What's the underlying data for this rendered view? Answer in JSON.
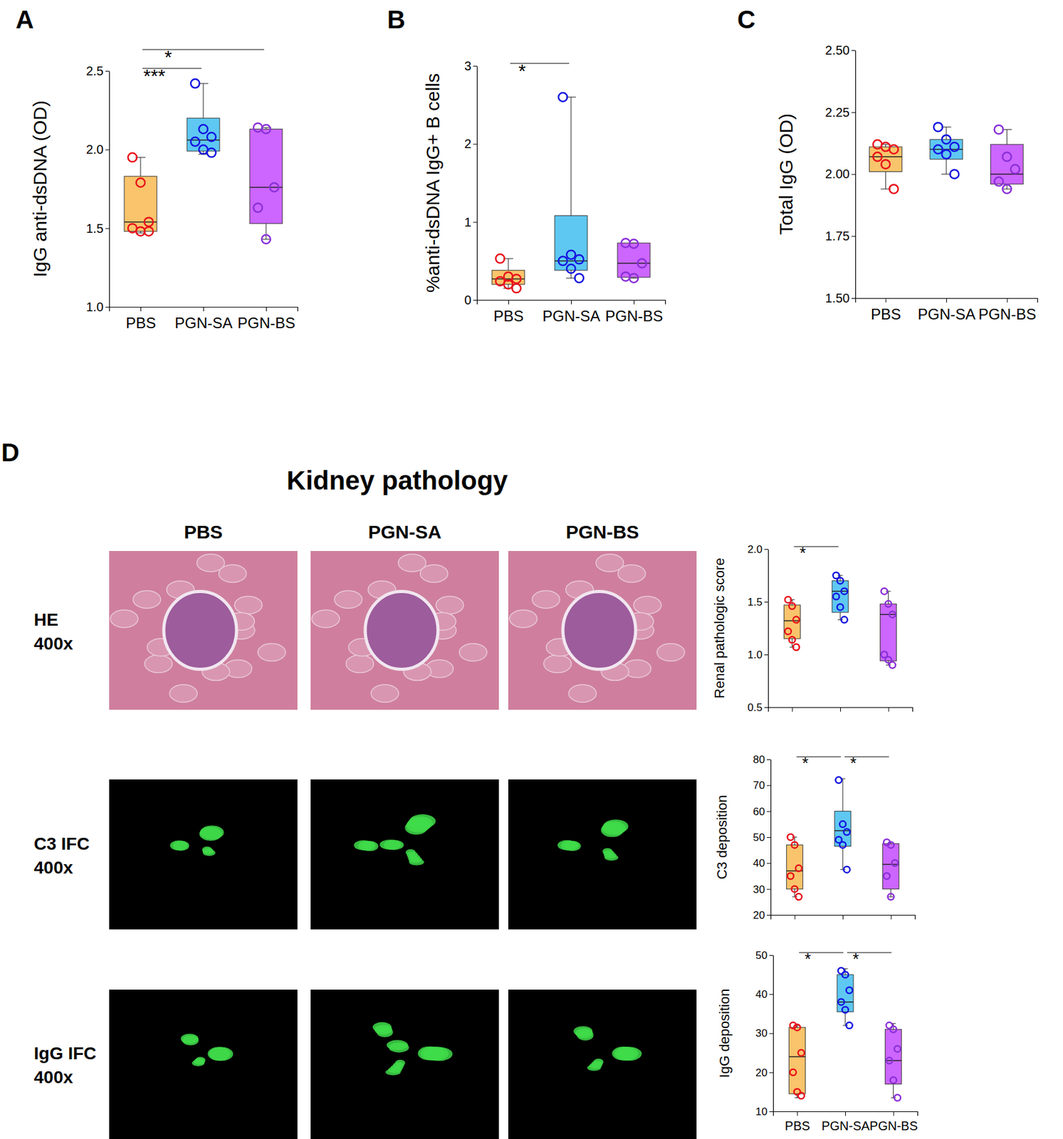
{
  "figure": {
    "panel": "D",
    "title": "Kidney pathology",
    "columns": [
      "PBS",
      "PGN-SA",
      "PGN-BS"
    ],
    "rows": [
      {
        "stain": "HE",
        "magnification": "400x"
      },
      {
        "stain": "C3 IFC",
        "magnification": "400x"
      },
      {
        "stain": "IgG IFC",
        "magnification": "400x"
      }
    ]
  },
  "chart_data": [
    {
      "type": "box",
      "panel": "A",
      "ylabel": "IgG anti-dsDNA (OD)",
      "categories": [
        "PBS",
        "PGN-SA",
        "PGN-BS"
      ],
      "ylim": [
        1.0,
        2.5
      ],
      "yticks": [
        {
          "value": 1,
          "label": "1.0"
        },
        1.5,
        {
          "value": 2,
          "label": "2.0"
        },
        2.5
      ],
      "boxes": [
        {
          "color": "#f9c46b",
          "points": {
            "color": "#e8121b",
            "values": [
              1.95,
              1.79,
              1.54,
              1.5,
              1.48,
              1.48
            ]
          },
          "whisker_low": 1.47,
          "q1": 1.48,
          "median": 1.54,
          "q3": 1.83,
          "whisker_high": 1.95
        },
        {
          "color": "#5ec8f2",
          "points": {
            "color": "#1515e0",
            "values": [
              2.42,
              2.13,
              2.08,
              2.05,
              2.0,
              1.98
            ]
          },
          "whisker_low": 1.97,
          "q1": 1.99,
          "median": 2.06,
          "q3": 2.2,
          "whisker_high": 2.42
        },
        {
          "color": "#cc66ff",
          "points": {
            "color": "#8b30d8",
            "values": [
              2.14,
              2.13,
              1.76,
              1.63,
              1.43
            ]
          },
          "whisker_low": 1.43,
          "q1": 1.53,
          "median": 1.76,
          "q3": 2.13,
          "whisker_high": 2.14
        }
      ],
      "significance": [
        {
          "between": [
            0,
            1
          ],
          "label": "***"
        },
        {
          "between": [
            0,
            2
          ],
          "label": "*"
        }
      ]
    },
    {
      "type": "box",
      "panel": "B",
      "ylabel": "%anti-dsDNA IgG+ B cells",
      "categories": [
        "PBS",
        "PGN-SA",
        "PGN-BS"
      ],
      "ylim": [
        0,
        3
      ],
      "yticks": [
        0,
        1,
        2,
        3
      ],
      "boxes": [
        {
          "color": "#f9c46b",
          "points": {
            "color": "#e8121b",
            "values": [
              0.53,
              0.3,
              0.27,
              0.24,
              0.2,
              0.15
            ]
          },
          "whisker_low": 0.15,
          "q1": 0.2,
          "median": 0.27,
          "q3": 0.38,
          "whisker_high": 0.53
        },
        {
          "color": "#5ec8f2",
          "points": {
            "color": "#1515e0",
            "values": [
              2.6,
              0.58,
              0.52,
              0.5,
              0.4,
              0.28
            ]
          },
          "whisker_low": 0.28,
          "q1": 0.38,
          "median": 0.5,
          "q3": 1.08,
          "whisker_high": 2.6
        },
        {
          "color": "#cc66ff",
          "points": {
            "color": "#8b30d8",
            "values": [
              0.73,
              0.72,
              0.47,
              0.3,
              0.28
            ]
          },
          "whisker_low": 0.28,
          "q1": 0.29,
          "median": 0.47,
          "q3": 0.73,
          "whisker_high": 0.73
        }
      ],
      "significance": [
        {
          "between": [
            0,
            1
          ],
          "label": "*"
        }
      ]
    },
    {
      "type": "box",
      "panel": "C",
      "ylabel": "Total IgG (OD)",
      "categories": [
        "PBS",
        "PGN-SA",
        "PGN-BS"
      ],
      "ylim": [
        1.5,
        2.5
      ],
      "yticks": [
        {
          "value": 1.5,
          "label": "1.50"
        },
        1.75,
        {
          "value": 2,
          "label": "2.00"
        },
        2.25,
        {
          "value": 2.5,
          "label": "2.50"
        }
      ],
      "boxes": [
        {
          "color": "#f9c46b",
          "points": {
            "color": "#e8121b",
            "values": [
              2.12,
              2.11,
              2.1,
              2.07,
              2.04,
              1.94
            ]
          },
          "whisker_low": 1.94,
          "q1": 2.01,
          "median": 2.07,
          "q3": 2.11,
          "whisker_high": 2.12
        },
        {
          "color": "#5ec8f2",
          "points": {
            "color": "#1515e0",
            "values": [
              2.19,
              2.14,
              2.11,
              2.1,
              2.08,
              2.0
            ]
          },
          "whisker_low": 2.0,
          "q1": 2.06,
          "median": 2.1,
          "q3": 2.14,
          "whisker_high": 2.19
        },
        {
          "color": "#cc66ff",
          "points": {
            "color": "#8b30d8",
            "values": [
              2.18,
              2.07,
              2.02,
              1.97,
              1.94
            ]
          },
          "whisker_low": 1.94,
          "q1": 1.96,
          "median": 2.0,
          "q3": 2.12,
          "whisker_high": 2.18
        }
      ]
    },
    {
      "type": "box",
      "ylabel": "Renal pathologic score",
      "categories": [
        null,
        null,
        null
      ],
      "ylim": [
        0.5,
        2.0
      ],
      "yticks": [
        0.5,
        {
          "value": 1,
          "label": "1.0"
        },
        1.5,
        {
          "value": 2,
          "label": "2.0"
        }
      ],
      "boxes": [
        {
          "color": "#f9c46b",
          "points": {
            "color": "#e8121b",
            "values": [
              1.52,
              1.46,
              1.33,
              1.22,
              1.14,
              1.07
            ]
          },
          "whisker_low": 1.07,
          "q1": 1.15,
          "median": 1.32,
          "q3": 1.47,
          "whisker_high": 1.52
        },
        {
          "color": "#5ec8f2",
          "points": {
            "color": "#1515e0",
            "values": [
              1.75,
              1.7,
              1.6,
              1.55,
              1.45,
              1.33
            ]
          },
          "whisker_low": 1.33,
          "q1": 1.4,
          "median": 1.6,
          "q3": 1.7,
          "whisker_high": 1.75
        },
        {
          "color": "#cc66ff",
          "points": {
            "color": "#8b30d8",
            "values": [
              1.6,
              1.48,
              1.38,
              1.0,
              0.95,
              0.9
            ]
          },
          "whisker_low": 0.9,
          "q1": 0.94,
          "median": 1.38,
          "q3": 1.48,
          "whisker_high": 1.6
        }
      ],
      "significance": [
        {
          "between": [
            0,
            1
          ],
          "label": "*"
        }
      ]
    },
    {
      "type": "box",
      "ylabel": "C3 deposition",
      "categories": [
        null,
        null,
        null
      ],
      "ylim": [
        20,
        80
      ],
      "yticks": [
        20,
        30,
        40,
        50,
        60,
        70,
        80
      ],
      "boxes": [
        {
          "color": "#f9c46b",
          "points": {
            "color": "#e8121b",
            "values": [
              50,
              47,
              38,
              35,
              30,
              27
            ]
          },
          "whisker_low": 27,
          "q1": 30,
          "median": 37,
          "q3": 47,
          "whisker_high": 50
        },
        {
          "color": "#5ec8f2",
          "points": {
            "color": "#1515e0",
            "values": [
              72,
              55,
              52,
              49,
              47,
              37.5
            ]
          },
          "whisker_low": 37.5,
          "q1": 46.5,
          "median": 52.5,
          "q3": 60,
          "whisker_high": 72.5
        },
        {
          "color": "#cc66ff",
          "points": {
            "color": "#8b30d8",
            "values": [
              48,
              47,
              40,
              35,
              27
            ]
          },
          "whisker_low": 27,
          "q1": 30,
          "median": 39.5,
          "q3": 47.5,
          "whisker_high": 48
        }
      ],
      "significance": [
        {
          "between": [
            0,
            1
          ],
          "label": "*"
        },
        {
          "between": [
            1,
            2
          ],
          "label": "*"
        }
      ]
    },
    {
      "type": "box",
      "ylabel": "IgG deposition",
      "categories": [
        "PBS",
        "PGN-SA",
        "PGN-BS"
      ],
      "ylim": [
        10,
        50
      ],
      "yticks": [
        10,
        20,
        30,
        40,
        50
      ],
      "boxes": [
        {
          "color": "#f9c46b",
          "points": {
            "color": "#e8121b",
            "values": [
              32,
              31.5,
              25,
              20,
              15,
              14
            ]
          },
          "whisker_low": 13.5,
          "q1": 14.5,
          "median": 24,
          "q3": 31.5,
          "whisker_high": 32
        },
        {
          "color": "#5ec8f2",
          "points": {
            "color": "#1515e0",
            "values": [
              46,
              45,
              41,
              38,
              36,
              32
            ]
          },
          "whisker_low": 32,
          "q1": 35.5,
          "median": 38,
          "q3": 45,
          "whisker_high": 46.5
        },
        {
          "color": "#cc66ff",
          "points": {
            "color": "#8b30d8",
            "values": [
              32,
              31,
              26,
              23,
              18,
              13.5
            ]
          },
          "whisker_low": 13.5,
          "q1": 17,
          "median": 23,
          "q3": 31,
          "whisker_high": 32.5
        }
      ],
      "significance": [
        {
          "between": [
            0,
            1
          ],
          "label": "*"
        },
        {
          "between": [
            1,
            2
          ],
          "label": "*"
        }
      ]
    }
  ]
}
